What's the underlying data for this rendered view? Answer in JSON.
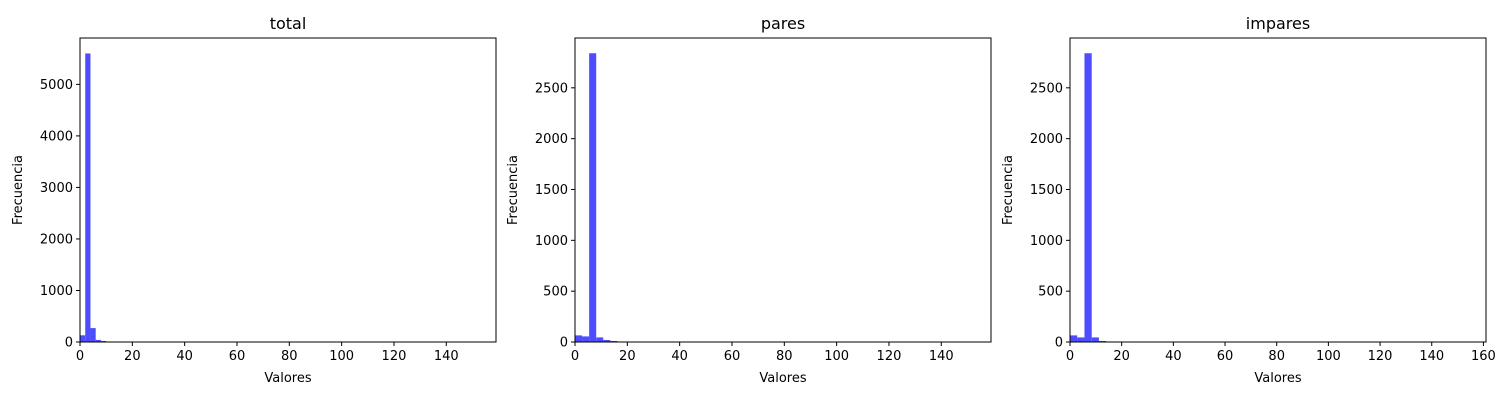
{
  "chart_data": [
    {
      "type": "bar",
      "title": "total",
      "xlabel": "Valores",
      "ylabel": "Frecuencia",
      "xlim": [
        0,
        159
      ],
      "ylim": [
        0,
        5900
      ],
      "xticks": [
        0,
        20,
        40,
        60,
        80,
        100,
        120,
        140
      ],
      "yticks": [
        0,
        1000,
        2000,
        3000,
        4000,
        5000
      ],
      "bar_color": "#4d4dff",
      "bins": [
        {
          "x0": 0,
          "x1": 2,
          "value": 130
        },
        {
          "x0": 2,
          "x1": 4,
          "value": 5600
        },
        {
          "x0": 4,
          "x1": 6,
          "value": 270
        },
        {
          "x0": 6,
          "x1": 8,
          "value": 40
        },
        {
          "x0": 8,
          "x1": 10,
          "value": 20
        },
        {
          "x0": 10,
          "x1": 12,
          "value": 8
        },
        {
          "x0": 12,
          "x1": 14,
          "value": 5
        },
        {
          "x0": 14,
          "x1": 16,
          "value": 3
        },
        {
          "x0": 16,
          "x1": 18,
          "value": 2
        },
        {
          "x0": 18,
          "x1": 20,
          "value": 1
        }
      ]
    },
    {
      "type": "bar",
      "title": "pares",
      "xlabel": "Valores",
      "ylabel": "Frecuencia",
      "xlim": [
        0,
        159
      ],
      "ylim": [
        0,
        2990
      ],
      "xticks": [
        0,
        20,
        40,
        60,
        80,
        100,
        120,
        140
      ],
      "yticks": [
        0,
        500,
        1000,
        1500,
        2000,
        2500
      ],
      "bar_color": "#4d4dff",
      "bins": [
        {
          "x0": 0,
          "x1": 2.7,
          "value": 65
        },
        {
          "x0": 2.7,
          "x1": 5.4,
          "value": 55
        },
        {
          "x0": 5.4,
          "x1": 8.1,
          "value": 2840
        },
        {
          "x0": 8.1,
          "x1": 10.8,
          "value": 45
        },
        {
          "x0": 10.8,
          "x1": 13.5,
          "value": 20
        },
        {
          "x0": 13.5,
          "x1": 16.2,
          "value": 10
        },
        {
          "x0": 16.2,
          "x1": 18.9,
          "value": 5
        },
        {
          "x0": 18.9,
          "x1": 21.6,
          "value": 3
        }
      ]
    },
    {
      "type": "bar",
      "title": "impares",
      "xlabel": "Valores",
      "ylabel": "Frecuencia",
      "xlim": [
        0,
        161
      ],
      "ylim": [
        0,
        2990
      ],
      "xticks": [
        0,
        20,
        40,
        60,
        80,
        100,
        120,
        140,
        160
      ],
      "yticks": [
        0,
        500,
        1000,
        1500,
        2000,
        2500
      ],
      "bar_color": "#4d4dff",
      "bins": [
        {
          "x0": 0,
          "x1": 2.8,
          "value": 65
        },
        {
          "x0": 2.8,
          "x1": 5.6,
          "value": 45
        },
        {
          "x0": 5.6,
          "x1": 8.4,
          "value": 2840
        },
        {
          "x0": 8.4,
          "x1": 11.2,
          "value": 45
        },
        {
          "x0": 11.2,
          "x1": 14,
          "value": 10
        },
        {
          "x0": 14,
          "x1": 16.8,
          "value": 5
        },
        {
          "x0": 16.8,
          "x1": 19.6,
          "value": 3
        }
      ]
    }
  ]
}
